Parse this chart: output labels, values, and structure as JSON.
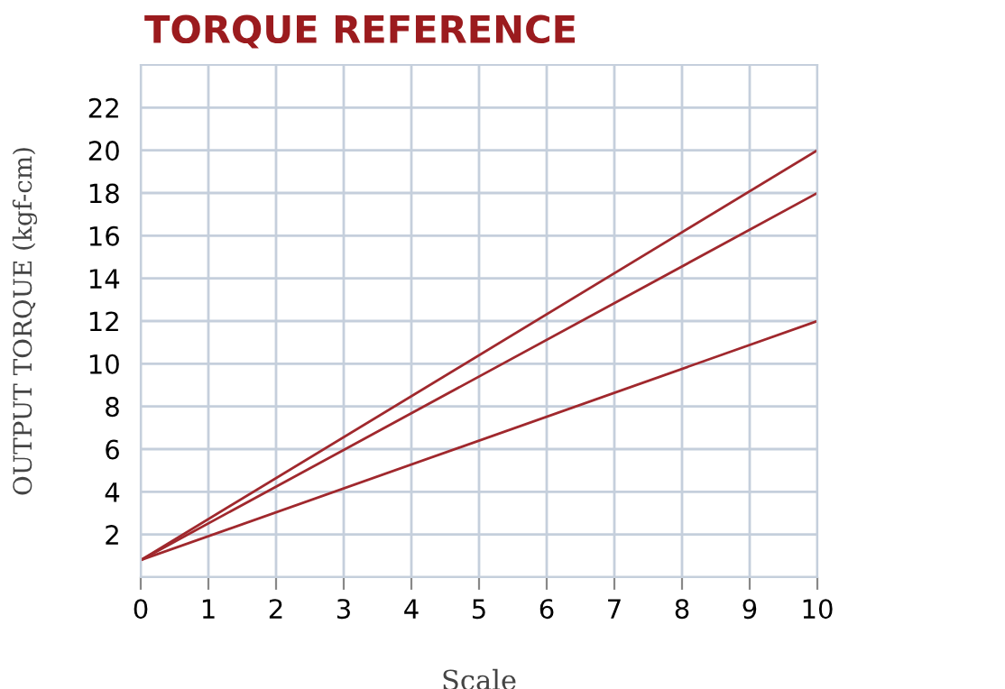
{
  "chart_data": {
    "type": "line",
    "title": "TORQUE REFERENCE",
    "xlabel": "Scale",
    "ylabel": "OUTPUT TORQUE (kgf-cm)",
    "x": [
      0,
      10
    ],
    "series": [
      {
        "color": "#a0282d",
        "values": [
          0.8,
          20
        ]
      },
      {
        "color": "#a0282d",
        "values": [
          0.8,
          18
        ]
      },
      {
        "color": "#a0282d",
        "values": [
          0.8,
          12
        ]
      }
    ],
    "xlim": [
      0,
      10
    ],
    "xticks": [
      0,
      1,
      2,
      3,
      4,
      5,
      6,
      7,
      8,
      9,
      10
    ],
    "ylim": [
      0,
      24
    ],
    "yticks": [
      {
        "value": 0,
        "label": null
      },
      2,
      4,
      6,
      8,
      10,
      12,
      14,
      16,
      18,
      20,
      22
    ],
    "grid": true,
    "marker": "none",
    "line_style": "solid"
  }
}
